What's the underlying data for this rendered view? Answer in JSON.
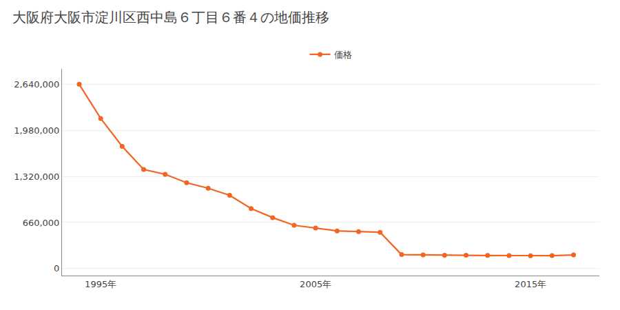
{
  "chart_data": {
    "type": "line",
    "title": "大阪府大阪市淀川区西中島６丁目６番４の地価推移",
    "x": [
      1994,
      1995,
      1996,
      1997,
      1998,
      1999,
      2000,
      2001,
      2002,
      2003,
      2004,
      2005,
      2006,
      2007,
      2008,
      2009,
      2010,
      2011,
      2012,
      2013,
      2014,
      2015,
      2016,
      2017
    ],
    "series": [
      {
        "name": "価格",
        "color": "#F26522",
        "marker": "circle",
        "values": [
          2640000,
          2150000,
          1750000,
          1420000,
          1350000,
          1230000,
          1150000,
          1050000,
          860000,
          730000,
          620000,
          580000,
          540000,
          530000,
          520000,
          200000,
          195000,
          192000,
          190000,
          188000,
          185000,
          183000,
          185000,
          195000
        ]
      }
    ],
    "xlim": [
      1993.2,
      2018.2
    ],
    "xticks": [
      {
        "value": 1995,
        "label": "1995年"
      },
      {
        "value": 2005,
        "label": "2005年"
      },
      {
        "value": 2015,
        "label": "2015年"
      }
    ],
    "ylim": [
      -100000,
      2860000
    ],
    "yticks": [
      0,
      {
        "value": 660000,
        "label": "660,000"
      },
      {
        "value": 1320000,
        "label": "1,320,000"
      },
      {
        "value": 1980000,
        "label": "1,980,000"
      },
      {
        "value": 2640000,
        "label": "2,640,000"
      }
    ],
    "grid": true,
    "legend": "top"
  }
}
